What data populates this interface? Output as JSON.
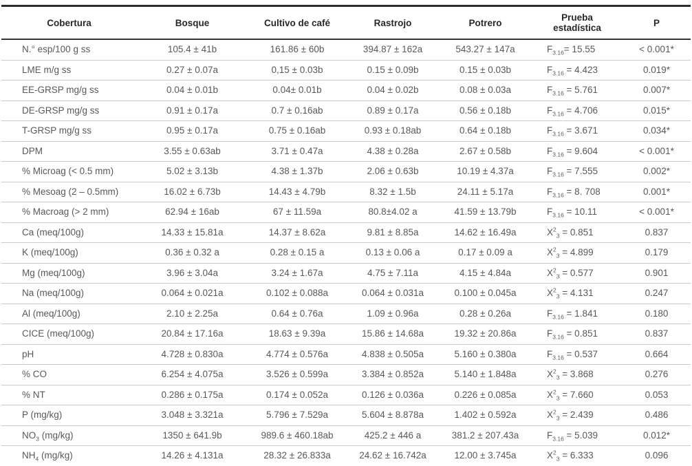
{
  "palette": {
    "header_text": "#29272A",
    "body_text": "#58585A",
    "rule_dark": "#2B2B2B",
    "rule_light": "#C9C9C9",
    "background": "#FFFFFF"
  },
  "table": {
    "columns": [
      {
        "label": "Cobertura",
        "wrap": false
      },
      {
        "label": "Bosque",
        "wrap": false
      },
      {
        "label": "Cultivo de café",
        "wrap": false
      },
      {
        "label": "Rastrojo",
        "wrap": false
      },
      {
        "label": "Potrero",
        "wrap": false
      },
      {
        "label": "Prueba estadística",
        "wrap": true
      },
      {
        "label": "P",
        "wrap": false
      }
    ],
    "rows": [
      {
        "cells": [
          "N.° esp/100 g ss",
          "105.4 ± 41b",
          "161.86 ± 60b",
          "394.87 ± 162a",
          "543.27 ± 147a",
          "F~3.16~= 15.55",
          "< 0.001*"
        ]
      },
      {
        "cells": [
          "LME m/g ss",
          "0.27 ± 0.07a",
          "0,15 ± 0.03b",
          "0.15 ± 0.09b",
          "0.15 ± 0.03b",
          "F~3.16~ = 4.423",
          "0.019*"
        ]
      },
      {
        "cells": [
          "EE-GRSP mg/g ss",
          "0.04 ± 0.01b",
          "0.04± 0.01b",
          "0.04 ± 0.02b",
          "0.08 ± 0.03a",
          "F~3.16~ = 5.761",
          "0.007*"
        ]
      },
      {
        "cells": [
          "DE-GRSP mg/g ss",
          "0.91 ± 0.17a",
          "0.7 ± 0.16ab",
          "0.89 ± 0.17a",
          "0.56 ± 0.18b",
          "F~3.16~ = 4.706",
          "0.015*"
        ]
      },
      {
        "cells": [
          "T-GRSP mg/g ss",
          "0.95 ± 0.17a",
          "0.75 ± 0.16ab",
          "0.93 ± 0.18ab",
          "0.64 ± 0.18b",
          "F~3.16~ = 3.671",
          "0.034*"
        ]
      },
      {
        "cells": [
          "DPM",
          "3.55 ± 0.63ab",
          "3.71 ± 0.47a",
          "4.38 ± 0.28a",
          "2.67 ± 0.58b",
          "F~3.16~ = 9.604",
          "< 0.001*"
        ]
      },
      {
        "cells": [
          "% Microag (< 0.5 mm)",
          "5.02 ± 3.13b",
          "4.38 ± 1.37b",
          "2.06 ± 0.63b",
          "10.19 ± 4.37a",
          "F~3.16~ = 7.555",
          "0.002*"
        ]
      },
      {
        "cells": [
          "% Mesoag (2 – 0.5mm)",
          "16.02 ± 6.73b",
          "14.43 ± 4.79b",
          "8.32 ± 1.5b",
          "24.11 ± 5.17a",
          "F~3.16~ = 8. 708",
          "0.001*"
        ]
      },
      {
        "cells": [
          "% Macroag (> 2 mm)",
          "62.94 ± 16ab",
          "67 ± 11.59a",
          "80.8±4.02 a",
          "41.59 ± 13.79b",
          "F~3.16~ = 10.11",
          "< 0.001*"
        ]
      },
      {
        "cells": [
          "Ca (meq/100g)",
          "14.33 ± 15.81a",
          "14.37 ± 8.62a",
          "9.81 ± 8.85a",
          "14.62 ± 16.49a",
          "X^2^~3~ = 0.851",
          "0.837"
        ]
      },
      {
        "cells": [
          "K (meq/100g)",
          "0.36 ± 0.32 a",
          "0.28 ± 0.15 a",
          "0.13 ± 0.06 a",
          "0.17 ± 0.09 a",
          "X^2^~3~ = 4.899",
          "0.179"
        ]
      },
      {
        "cells": [
          "Mg (meq/100g)",
          "3.96 ± 3.04a",
          "3.24 ± 1.67a",
          "4.75 ± 7.11a",
          "4.15 ± 4.84a",
          "X^2^~3~ = 0.577",
          "0.901"
        ]
      },
      {
        "cells": [
          "Na (meq/100g)",
          "0.064 ± 0.021a",
          "0.102 ± 0.088a",
          "0.064 ± 0.031a",
          "0.100 ± 0.045a",
          "X^2^~3~ = 4.131",
          "0.247"
        ]
      },
      {
        "cells": [
          "Al (meq/100g)",
          "2.10 ± 2.25a",
          "0.64 ± 0.76a",
          "1.09 ± 0.96a",
          "0.28 ± 0.26a",
          "F~3.16~ = 1.841",
          "0.180"
        ]
      },
      {
        "cells": [
          "CICE (meq/100g)",
          "20.84 ± 17.16a",
          "18.63 ± 9.39a",
          "15.86 ± 14.68a",
          "19.32 ± 20.86a",
          "F~3.16~ = 0.851",
          "0.837"
        ]
      },
      {
        "cells": [
          "pH",
          "4.728 ± 0.830a",
          "4.774 ± 0.576a",
          "4.838 ± 0.505a",
          "5.160 ± 0.380a",
          "F~3.16~ = 0.537",
          "0.664"
        ]
      },
      {
        "cells": [
          "% CO",
          "6.254 ± 4.075a",
          "3.526 ± 0.599a",
          "3.384 ± 0.852a",
          "5.140 ± 1.848a",
          "X^2^~3~ = 3.868",
          "0.276"
        ]
      },
      {
        "cells": [
          "% NT",
          "0.286 ± 0.175a",
          "0.174 ± 0.052a",
          "0.126 ± 0.036a",
          "0.226 ± 0.085a",
          "X^2^~3~ = 7.660",
          "0.053"
        ]
      },
      {
        "cells": [
          "P (mg/kg)",
          "3.048 ± 3.321a",
          "5.796 ± 7.529a",
          "5.604 ± 8.878a",
          "1.402 ± 0.592a",
          "X^2^~3~ = 2.439",
          "0.486"
        ]
      },
      {
        "cells": [
          "NO~3~ (mg/kg)",
          "1350 ± 641.9b",
          "989.6 ± 460.18ab",
          "425.2 ± 446 a",
          "381.2 ± 207.43a",
          "F~3.16~ = 5.039",
          "0.012*"
        ]
      },
      {
        "cells": [
          "NH~4~ (mg/kg)",
          "14.26 ± 4.131a",
          "28.32 ± 26.833a",
          "24.62 ± 16.742a",
          "12.00 ± 3.745a",
          "X^2^~3~ = 6.333",
          "0.096"
        ]
      }
    ]
  }
}
